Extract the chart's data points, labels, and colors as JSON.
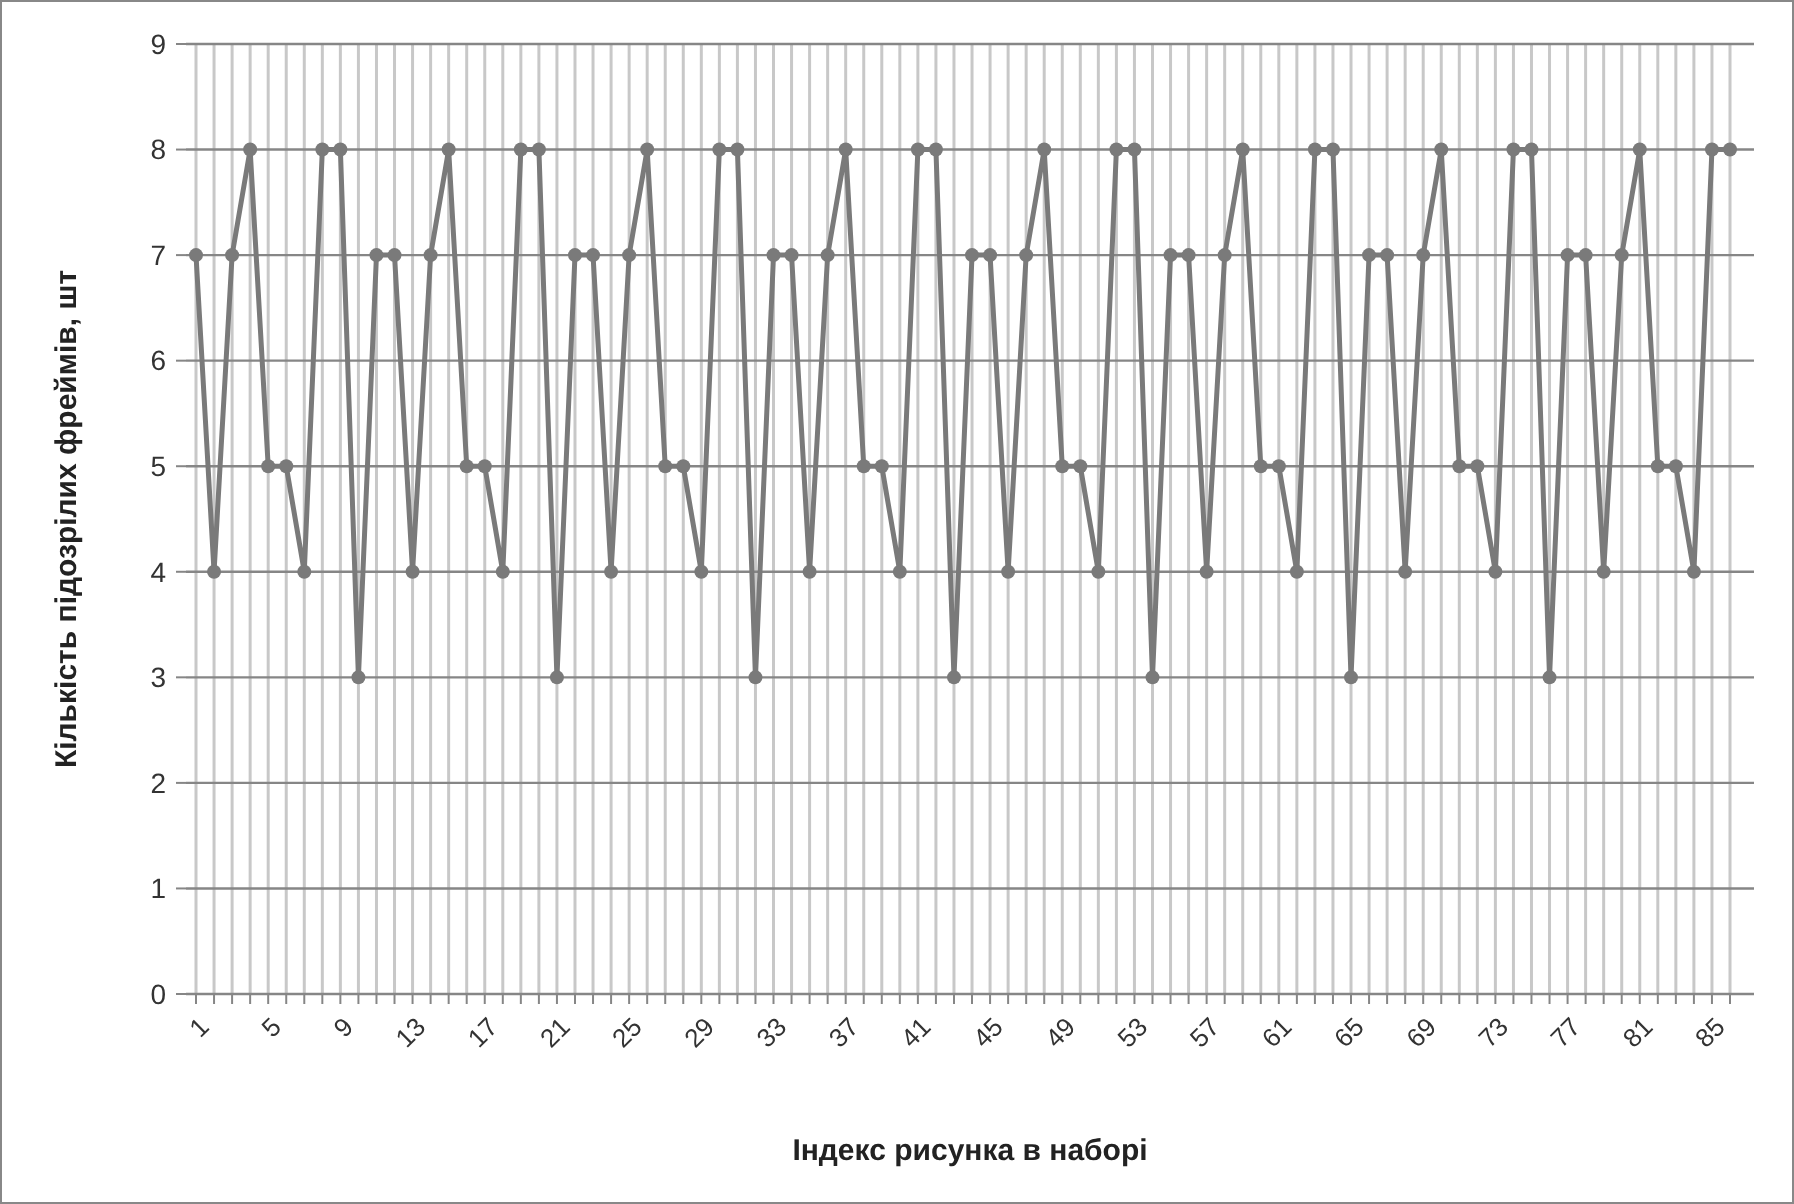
{
  "chart_data": {
    "type": "line",
    "xlabel": "Індекс рисунка в наборі",
    "ylabel": "Кількість підозрілих фреймів, шт",
    "categories": [
      "1",
      null,
      null,
      null,
      "5",
      null,
      null,
      null,
      "9",
      null,
      null,
      null,
      "13",
      null,
      null,
      null,
      "17",
      null,
      null,
      null,
      "21",
      null,
      null,
      null,
      "25",
      null,
      null,
      null,
      "29",
      null,
      null,
      null,
      "33",
      null,
      null,
      null,
      "37",
      null,
      null,
      null,
      "41",
      null,
      null,
      null,
      "45",
      null,
      null,
      null,
      "49",
      null,
      null,
      null,
      "53",
      null,
      null,
      null,
      "57",
      null,
      null,
      null,
      "61",
      null,
      null,
      null,
      "65",
      null,
      null,
      null,
      "69",
      null,
      null,
      null,
      "73",
      null,
      null,
      null,
      "77",
      null,
      null,
      null,
      "81",
      null,
      null,
      null,
      "85",
      null
    ],
    "series": [
      {
        "color": "#7a7a7a",
        "values": [
          7,
          4,
          7,
          8,
          5,
          5,
          4,
          8,
          8,
          3,
          7,
          7,
          4,
          7,
          8,
          5,
          5,
          4,
          8,
          8,
          3,
          7,
          7,
          4,
          7,
          8,
          5,
          5,
          4,
          8,
          8,
          3,
          7,
          7,
          4,
          7,
          8,
          5,
          5,
          4,
          8,
          8,
          3,
          7,
          7,
          4,
          7,
          8,
          5,
          5,
          4,
          8,
          8,
          3,
          7,
          7,
          4,
          7,
          8,
          5,
          5,
          4,
          8,
          8,
          3,
          7,
          7,
          4,
          7,
          8,
          5,
          5,
          4,
          8,
          8,
          3,
          7,
          7,
          4,
          7,
          8,
          5,
          5,
          4,
          8,
          8
        ]
      }
    ],
    "ylim": [
      0,
      9
    ],
    "yticks": [
      0,
      1,
      2,
      3,
      4,
      5,
      6,
      7,
      8,
      9
    ],
    "grid": true,
    "marker": "circle",
    "line_style": "solid"
  }
}
